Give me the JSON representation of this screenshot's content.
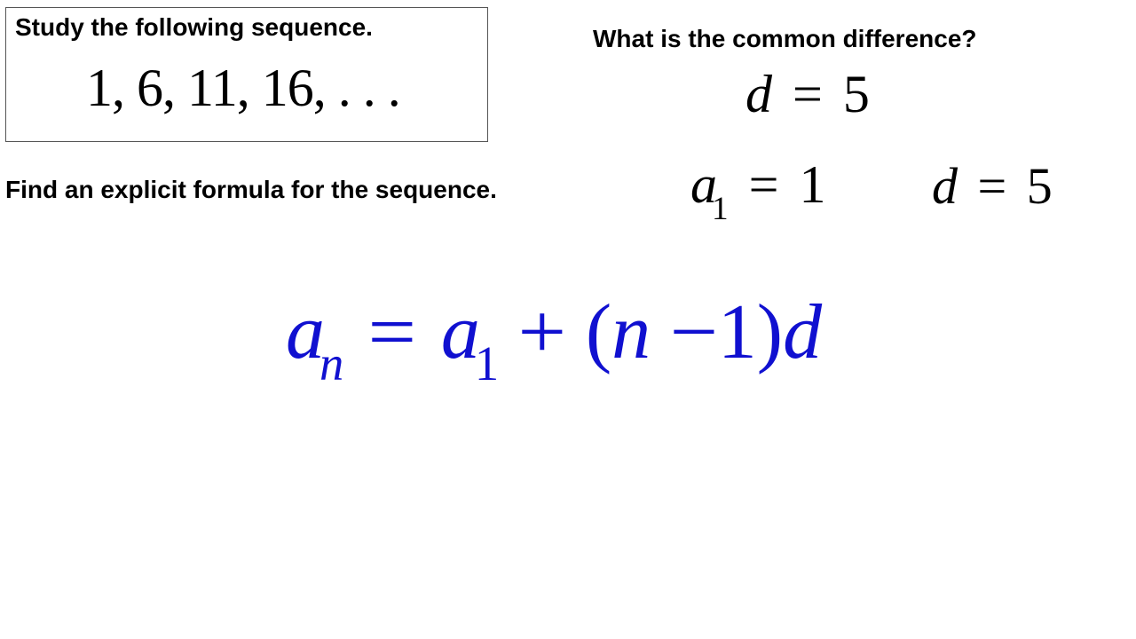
{
  "box": {
    "title": "Study the following sequence.",
    "sequence": "1, 6, 11, 16, . . ."
  },
  "question1": "What is the common difference?",
  "answer_d_top": {
    "var": "d",
    "eq": "=",
    "val": "5"
  },
  "question2": "Find an explicit formula for the sequence.",
  "a1_expr": {
    "var": "a",
    "sub": "1",
    "eq": "=",
    "val": "1"
  },
  "d_right": {
    "var": "d",
    "eq": "=",
    "val": "5"
  },
  "formula": {
    "lhs_var": "a",
    "lhs_sub": "n",
    "eq": "=",
    "rhs_a": "a",
    "rhs_a_sub": "1",
    "plus": "+",
    "lparen": "(",
    "n": "n",
    "minus": "−",
    "one": "1",
    "rparen": ")",
    "d": "d"
  },
  "colors": {
    "text": "#000000",
    "formula": "#1010d0",
    "background": "#ffffff",
    "border": "#555555"
  },
  "fonts": {
    "label_family": "Arial",
    "label_size_pt": 21,
    "math_family": "Times New Roman",
    "sequence_size_pt": 45,
    "small_math_size_pt": 45,
    "formula_size_pt": 66
  }
}
